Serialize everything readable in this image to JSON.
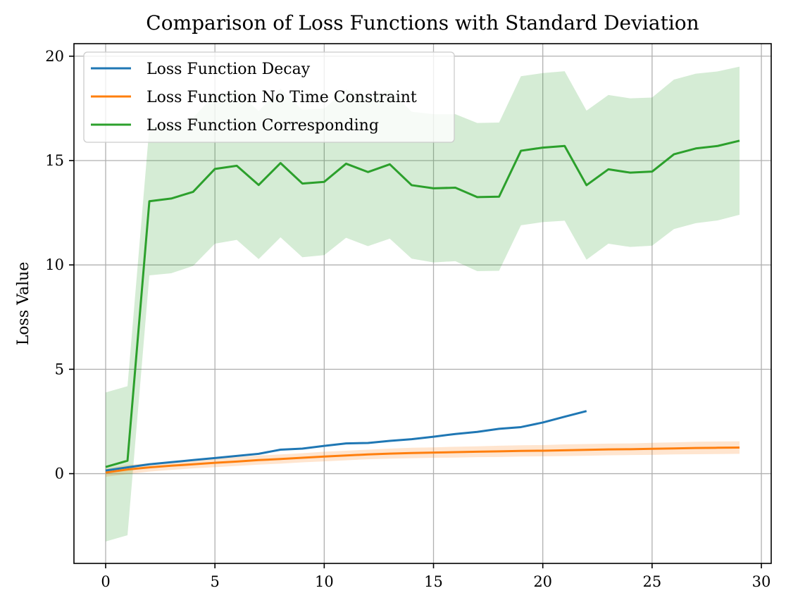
{
  "chart_data": {
    "type": "line",
    "title": "Comparison of Loss Functions with Standard Deviation",
    "xlabel": "",
    "ylabel": "Loss Value",
    "xlim": [
      -1.45,
      30.45
    ],
    "ylim": [
      -4.3,
      20.6
    ],
    "x_ticks": [
      0,
      5,
      10,
      15,
      20,
      25,
      30
    ],
    "y_ticks": [
      0,
      5,
      10,
      15,
      20
    ],
    "grid": true,
    "legend_position": "top-left",
    "series": [
      {
        "name": "Loss Function Decay",
        "color": "#1f77b4",
        "x": [
          0,
          1,
          2,
          3,
          4,
          5,
          6,
          7,
          8,
          9,
          10,
          11,
          12,
          13,
          14,
          15,
          16,
          17,
          18,
          19,
          20,
          21,
          22
        ],
        "values": [
          0.15,
          0.3,
          0.45,
          0.55,
          0.65,
          0.75,
          0.85,
          0.95,
          1.15,
          1.2,
          1.33,
          1.45,
          1.47,
          1.57,
          1.65,
          1.77,
          1.9,
          2.0,
          2.15,
          2.23,
          2.45,
          2.73,
          3.0
        ]
      },
      {
        "name": "Loss Function No Time Constraint",
        "color": "#ff7f0e",
        "x": [
          0,
          1,
          2,
          3,
          4,
          5,
          6,
          7,
          8,
          9,
          10,
          11,
          12,
          13,
          14,
          15,
          16,
          17,
          18,
          19,
          20,
          21,
          22,
          23,
          24,
          25,
          26,
          27,
          28,
          29
        ],
        "values": [
          0.05,
          0.2,
          0.3,
          0.38,
          0.45,
          0.52,
          0.58,
          0.65,
          0.7,
          0.76,
          0.82,
          0.87,
          0.92,
          0.96,
          0.99,
          1.01,
          1.03,
          1.05,
          1.07,
          1.09,
          1.1,
          1.12,
          1.14,
          1.16,
          1.17,
          1.19,
          1.21,
          1.23,
          1.24,
          1.25
        ],
        "lower": [
          -0.15,
          -0.02,
          0.1,
          0.18,
          0.25,
          0.31,
          0.37,
          0.43,
          0.48,
          0.54,
          0.59,
          0.64,
          0.69,
          0.72,
          0.74,
          0.76,
          0.77,
          0.79,
          0.8,
          0.82,
          0.83,
          0.84,
          0.86,
          0.88,
          0.89,
          0.9,
          0.92,
          0.93,
          0.94,
          0.95
        ],
        "upper": [
          0.25,
          0.42,
          0.5,
          0.58,
          0.65,
          0.73,
          0.79,
          0.87,
          0.92,
          0.98,
          1.05,
          1.1,
          1.15,
          1.2,
          1.24,
          1.26,
          1.29,
          1.31,
          1.34,
          1.36,
          1.37,
          1.4,
          1.42,
          1.44,
          1.45,
          1.48,
          1.5,
          1.53,
          1.54,
          1.55
        ]
      },
      {
        "name": "Loss Function Corresponding",
        "color": "#2ca02c",
        "x": [
          0,
          1,
          2,
          3,
          4,
          5,
          6,
          7,
          8,
          9,
          10,
          11,
          12,
          13,
          14,
          15,
          16,
          17,
          18,
          19,
          20,
          21,
          22,
          23,
          24,
          25,
          26,
          27,
          28,
          29
        ],
        "values": [
          0.32,
          0.62,
          13.05,
          13.18,
          13.5,
          14.6,
          14.75,
          13.83,
          14.88,
          13.9,
          13.98,
          14.85,
          14.45,
          14.82,
          13.82,
          13.67,
          13.7,
          13.25,
          13.27,
          15.47,
          15.62,
          15.7,
          13.82,
          14.58,
          14.42,
          14.47,
          15.3,
          15.58,
          15.7,
          15.95
        ],
        "lower": [
          -3.25,
          -2.95,
          9.5,
          9.6,
          9.95,
          11.02,
          11.2,
          10.28,
          11.32,
          10.37,
          10.47,
          11.3,
          10.9,
          11.26,
          10.3,
          10.12,
          10.18,
          9.7,
          9.72,
          11.9,
          12.05,
          12.12,
          10.25,
          11.02,
          10.86,
          10.92,
          11.72,
          12.0,
          12.13,
          12.4
        ]
      }
    ]
  }
}
